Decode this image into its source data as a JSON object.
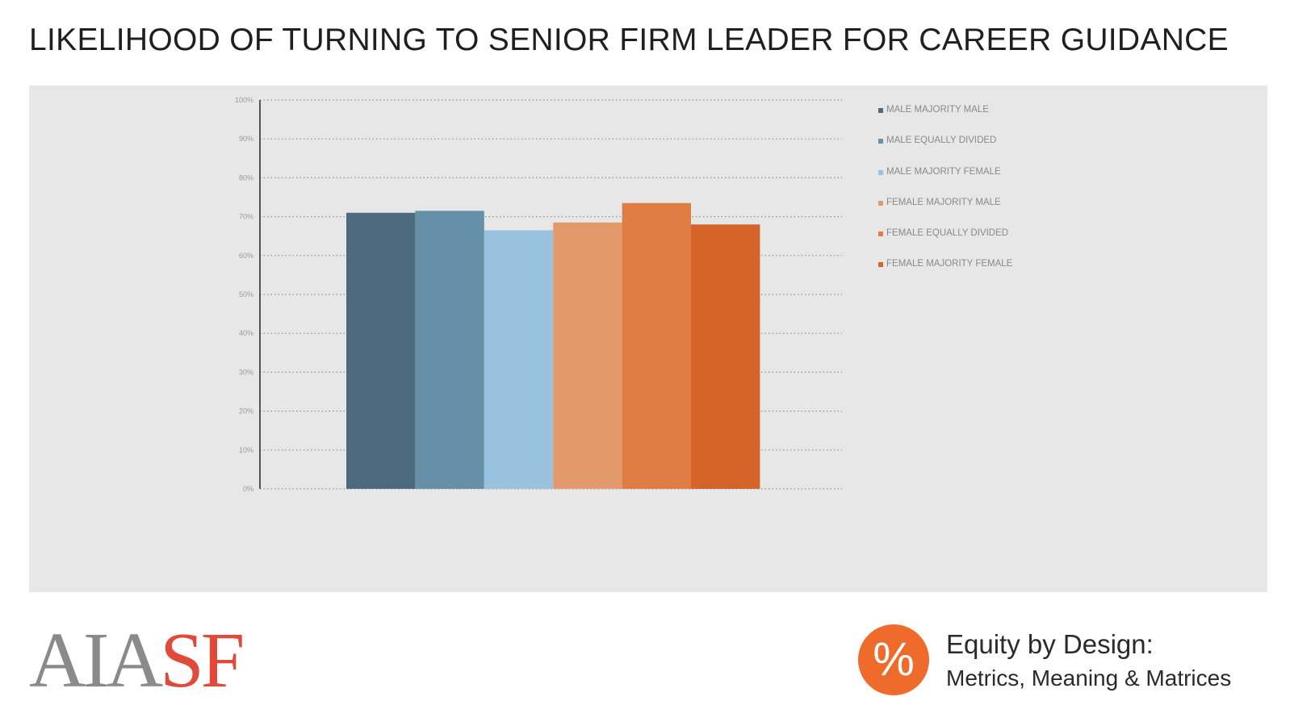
{
  "page": {
    "title": "LIKELIHOOD OF TURNING TO SENIOR FIRM LEADER FOR CAREER GUIDANCE"
  },
  "chart_data": {
    "type": "bar",
    "title": "LIKELIHOOD OF TURNING TO SENIOR FIRM LEADER FOR CAREER GUIDANCE",
    "xlabel": "",
    "ylabel": "",
    "ylim": [
      0,
      100
    ],
    "yticks": [
      0,
      10,
      20,
      30,
      40,
      50,
      60,
      70,
      80,
      90,
      100
    ],
    "ytick_labels": [
      "0%",
      "10%",
      "20%",
      "30%",
      "40%",
      "50%",
      "60%",
      "70%",
      "80%",
      "90%",
      "100%"
    ],
    "grid": true,
    "legend_position": "right",
    "categories": [
      ""
    ],
    "series": [
      {
        "name": "MALE MAJORITY MALE",
        "values": [
          71
        ],
        "color": "#4d6a7c"
      },
      {
        "name": "MALE EQUALLY DIVIDED",
        "values": [
          71.5
        ],
        "color": "#6690a7"
      },
      {
        "name": "MALE MAJORITY FEMALE",
        "values": [
          66.5
        ],
        "color": "#99c2df"
      },
      {
        "name": "FEMALE MAJORITY MALE",
        "values": [
          68.5
        ],
        "color": "#e39a6a"
      },
      {
        "name": "FEMALE EQUALLY DIVIDED",
        "values": [
          73.5
        ],
        "color": "#e07d44"
      },
      {
        "name": "FEMALE MAJORITY FEMALE",
        "values": [
          68
        ],
        "color": "#d6642a"
      }
    ]
  },
  "footer": {
    "logo_left": "AIA",
    "logo_right": "SF",
    "logo_colors": {
      "aia": "#8a8a8a",
      "sf": "#e1493a"
    },
    "badge_symbol": "%",
    "badge_color": "#ee6b2c",
    "brand_title": "Equity by Design:",
    "brand_subtitle": "Metrics, Meaning & Matrices"
  }
}
